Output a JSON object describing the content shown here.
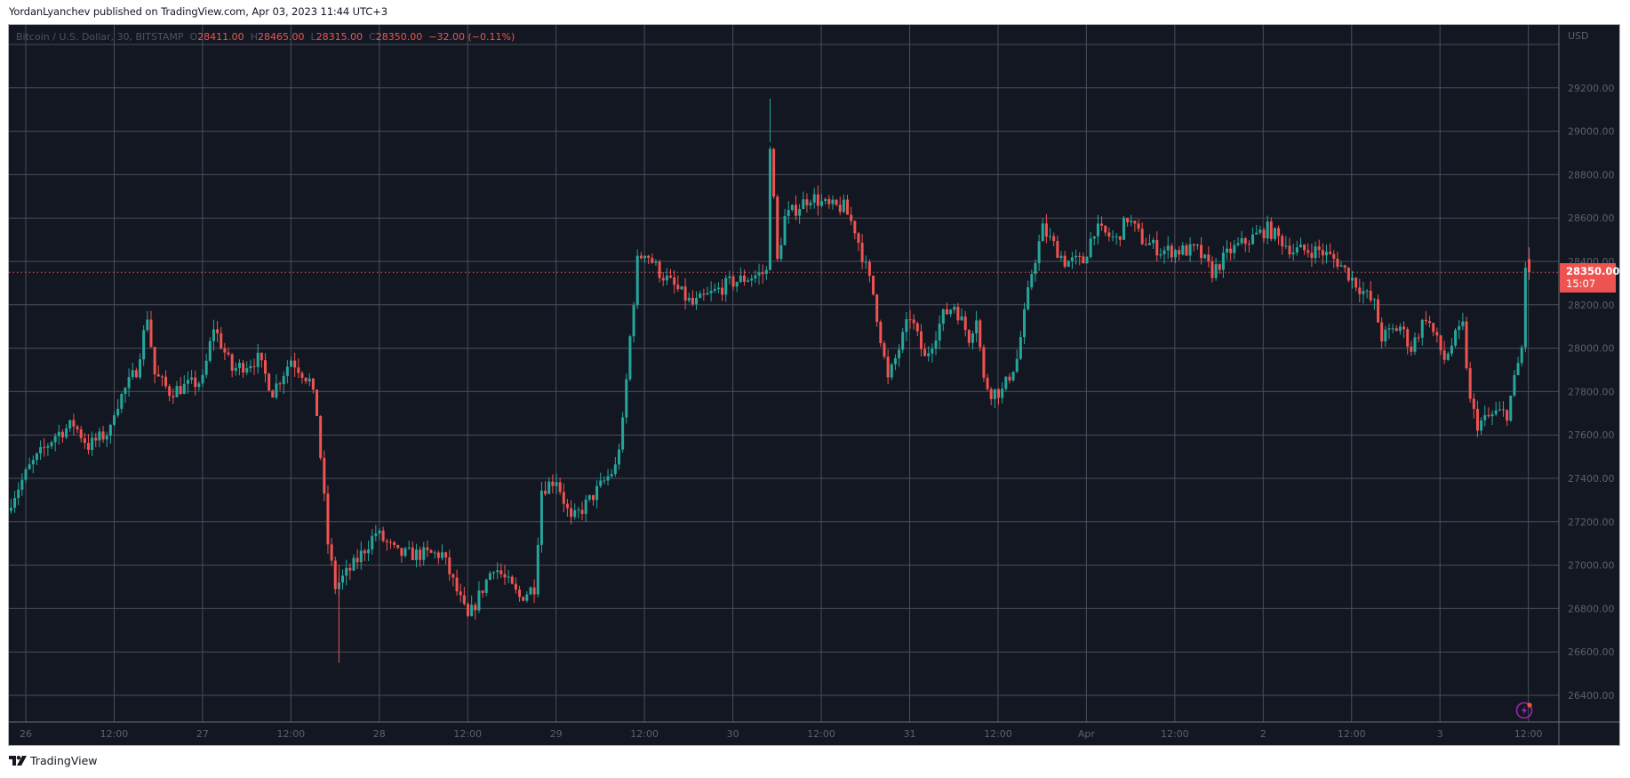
{
  "attribution": "YordanLyanchev published on TradingView.com, Apr 03, 2023 11:44 UTC+3",
  "legend": {
    "symbol": "Bitcoin / U.S. Dollar, 30, BITSTAMP",
    "o_label": "O",
    "open": "28411.00",
    "h_label": "H",
    "high": "28465.00",
    "l_label": "L",
    "low": "28315.00",
    "c_label": "C",
    "close": "28350.00",
    "change": "−32.00 (−0.11%)"
  },
  "price_axis": {
    "currency": "USD"
  },
  "last_price": {
    "price": "28350.00",
    "countdown": "15:07"
  },
  "footer": {
    "brand": "TradingView"
  },
  "icons": {
    "snapshot": "lightning-icon"
  },
  "colors": {
    "up": "#26a69a",
    "down": "#ef5350",
    "background": "#131722",
    "grid": "#4a4e5a",
    "text": "#5d606b"
  },
  "chart_data": {
    "type": "candlestick",
    "title": "Bitcoin / U.S. Dollar, 30, BITSTAMP",
    "interval": "30m",
    "xlabel": "",
    "ylabel": "USD",
    "ylim": [
      26300,
      29500
    ],
    "grid": true,
    "y_ticks": [
      29200,
      29000,
      28800,
      28600,
      28400,
      28200,
      28000,
      27800,
      27600,
      27400,
      27200,
      27000,
      26800,
      26600,
      26400
    ],
    "x_ticks": [
      "26",
      "12:00",
      "27",
      "12:00",
      "28",
      "12:00",
      "29",
      "12:00",
      "30",
      "12:00",
      "31",
      "12:00",
      "Apr",
      "12:00",
      "2",
      "12:00",
      "3",
      "12:00"
    ],
    "last": {
      "open": 28411,
      "high": 28465,
      "low": 28315,
      "close": 28350,
      "change": -32,
      "change_pct": -0.11
    },
    "path_note": "Approximate close-price anchors [bar_index, price]; bar_index counts 30m bars from Mar 26 00:00",
    "anchors": [
      [
        0,
        27300
      ],
      [
        5,
        27450
      ],
      [
        12,
        27600
      ],
      [
        17,
        27650
      ],
      [
        21,
        27550
      ],
      [
        27,
        27620
      ],
      [
        28,
        27720
      ],
      [
        34,
        27900
      ],
      [
        37,
        28150
      ],
      [
        39,
        27880
      ],
      [
        43,
        27800
      ],
      [
        52,
        27850
      ],
      [
        55,
        28100
      ],
      [
        60,
        27900
      ],
      [
        67,
        27950
      ],
      [
        71,
        27800
      ],
      [
        76,
        27950
      ],
      [
        81,
        27850
      ],
      [
        83,
        27700
      ],
      [
        86,
        27100
      ],
      [
        88,
        26900
      ],
      [
        93,
        27000
      ],
      [
        99,
        27150
      ],
      [
        105,
        27050
      ],
      [
        117,
        27050
      ],
      [
        124,
        26750
      ],
      [
        131,
        27000
      ],
      [
        138,
        26850
      ],
      [
        142,
        26900
      ],
      [
        144,
        27350
      ],
      [
        148,
        27400
      ],
      [
        152,
        27200
      ],
      [
        157,
        27300
      ],
      [
        164,
        27450
      ],
      [
        166,
        27650
      ],
      [
        168,
        28050
      ],
      [
        170,
        28400
      ],
      [
        172,
        28450
      ],
      [
        176,
        28350
      ],
      [
        185,
        28200
      ],
      [
        195,
        28300
      ],
      [
        205,
        28350
      ],
      [
        206,
        28950
      ],
      [
        208,
        28400
      ],
      [
        210,
        28600
      ],
      [
        217,
        28700
      ],
      [
        222,
        28650
      ],
      [
        226,
        28650
      ],
      [
        229,
        28550
      ],
      [
        234,
        28250
      ],
      [
        238,
        27850
      ],
      [
        241,
        28000
      ],
      [
        244,
        28150
      ],
      [
        248,
        27950
      ],
      [
        253,
        28150
      ],
      [
        256,
        28200
      ],
      [
        260,
        28050
      ],
      [
        262,
        28150
      ],
      [
        264,
        27850
      ],
      [
        266,
        27800
      ],
      [
        269,
        27800
      ],
      [
        273,
        27950
      ],
      [
        275,
        28150
      ],
      [
        277,
        28350
      ],
      [
        280,
        28550
      ],
      [
        286,
        28400
      ],
      [
        291,
        28400
      ],
      [
        294,
        28550
      ],
      [
        300,
        28500
      ],
      [
        303,
        28600
      ],
      [
        307,
        28500
      ],
      [
        312,
        28450
      ],
      [
        322,
        28450
      ],
      [
        326,
        28350
      ],
      [
        331,
        28450
      ],
      [
        336,
        28500
      ],
      [
        341,
        28550
      ],
      [
        348,
        28450
      ],
      [
        355,
        28450
      ],
      [
        360,
        28400
      ],
      [
        365,
        28300
      ],
      [
        370,
        28200
      ],
      [
        372,
        28050
      ],
      [
        377,
        28100
      ],
      [
        380,
        28000
      ],
      [
        384,
        28150
      ],
      [
        389,
        27950
      ],
      [
        392,
        28050
      ],
      [
        394,
        28100
      ],
      [
        396,
        27750
      ],
      [
        398,
        27650
      ],
      [
        403,
        27700
      ],
      [
        406,
        27700
      ],
      [
        408,
        27850
      ],
      [
        410,
        28000
      ],
      [
        411,
        28380
      ],
      [
        412,
        28350
      ]
    ],
    "notable": {
      "high": {
        "price": 29150,
        "when": "Mar 30 ~10:30"
      },
      "low": {
        "price": 26550,
        "when": "Mar 27 ~17:30"
      }
    }
  }
}
